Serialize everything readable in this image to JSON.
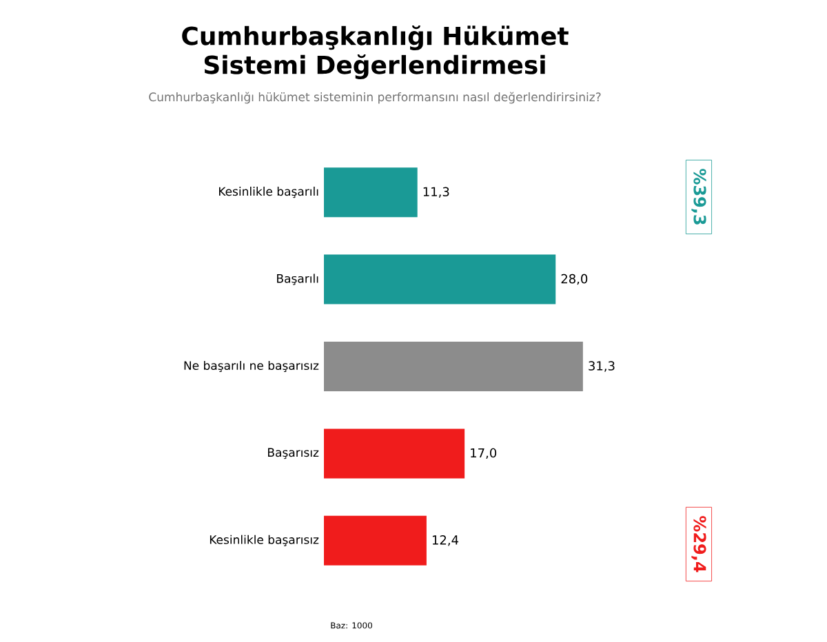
{
  "chart_data": {
    "type": "bar",
    "orientation": "horizontal",
    "title": "Cumhurbaşkanlığı Hükümet Sistemi Değerlendirmesi",
    "subtitle": "Cumhurbaşkanlığı hükümet sisteminin performansını nasıl değerlendirirsiniz?",
    "categories": [
      "Kesinlikle başarılı",
      "Başarılı",
      "Ne başarılı ne başarısız",
      "Başarısız",
      "Kesinlikle başarısız"
    ],
    "values": [
      11.3,
      28.0,
      31.3,
      17.0,
      12.4
    ],
    "value_labels": [
      "11,3",
      "28,0",
      "31,3",
      "17,0",
      "12,4"
    ],
    "colors": [
      "#1a9a96",
      "#1a9a96",
      "#8c8c8c",
      "#f01c1c",
      "#f01c1c"
    ],
    "annotations": [
      "%39,3",
      "%29,4",
      "Baz: 1000"
    ]
  }
}
